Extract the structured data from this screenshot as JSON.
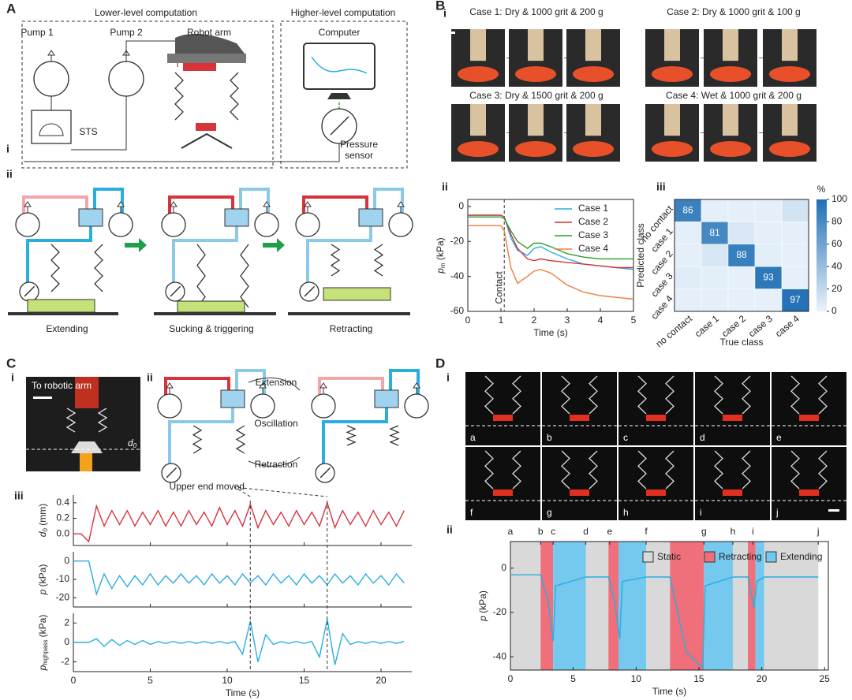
{
  "A": {
    "label": "A",
    "lower": "Lower-level computation",
    "higher": "Higher-level computation",
    "pump1": "Pump 1",
    "pump2": "Pump 2",
    "robot": "Robot arm",
    "computer": "Computer",
    "sts": "STS",
    "sensor": [
      "Pressure",
      "sensor"
    ],
    "sub_i": "i",
    "sub_ii": "ii",
    "steps": [
      "Extending",
      "Sucking & triggering",
      "Retracting"
    ]
  },
  "B": {
    "label": "B",
    "sub_i": "i",
    "cases": [
      "Case 1: Dry & 1000 grit & 200 g",
      "Case 2: Dry & 1000 grit & 100 g",
      "Case 3: Dry & 1500 grit & 200 g",
      "Case 4: Wet & 1000 grit & 200 g"
    ],
    "sub_ii": "ii",
    "sub_iii": "iii"
  },
  "C": {
    "label": "C",
    "sub_i": "i",
    "photo_caption": "To robotic arm",
    "photo_d": "d",
    "photo_d_sub": "0",
    "sub_ii": "ii",
    "cycle": [
      "Extension",
      "Oscillation",
      "Retraction"
    ],
    "sub_iii": "iii"
  },
  "D": {
    "label": "D",
    "sub_i": "i",
    "frames": [
      "a",
      "b",
      "c",
      "d",
      "e",
      "f",
      "g",
      "h",
      "i",
      "j"
    ],
    "sub_ii": "ii"
  },
  "chart_data": [
    {
      "type": "line",
      "x": [
        0,
        0.5,
        1,
        1.1,
        1.3,
        1.5,
        1.8,
        2,
        2.2,
        2.5,
        3,
        3.5,
        4,
        4.5,
        5
      ],
      "series": [
        {
          "name": "Case 1",
          "color": "#29aee0",
          "values": [
            -5,
            -5,
            -5,
            -6,
            -18,
            -25,
            -28,
            -24,
            -23,
            -26,
            -30,
            -33,
            -34,
            -35,
            -36
          ]
        },
        {
          "name": "Case 2",
          "color": "#d6333a",
          "values": [
            -5,
            -5,
            -5,
            -6,
            -16,
            -24,
            -30,
            -31,
            -30,
            -31,
            -32,
            -33,
            -34,
            -35,
            -35
          ]
        },
        {
          "name": "Case 3",
          "color": "#2ca02c",
          "values": [
            -6,
            -6,
            -6,
            -7,
            -14,
            -20,
            -24,
            -21,
            -21,
            -23,
            -27,
            -29,
            -30,
            -30,
            -30
          ]
        },
        {
          "name": "Case 4",
          "color": "#f07b3f",
          "values": [
            -11,
            -11,
            -11,
            -14,
            -35,
            -44,
            -40,
            -37,
            -36,
            -38,
            -45,
            -49,
            -51,
            -52,
            -53
          ]
        }
      ],
      "xlim": [
        0,
        5
      ],
      "xticks": [
        0,
        1,
        2,
        3,
        4,
        5
      ],
      "ylim": [
        -60,
        4
      ],
      "yticks": [
        -60,
        -40,
        -20,
        0
      ],
      "xlabel": "Time (s)",
      "ylabel": {
        "main": "p",
        "sub": "m",
        "unit": " (kPa)"
      },
      "annotations": [
        {
          "text": "Contact",
          "x": 1.1
        }
      ],
      "legend": "upper right"
    },
    {
      "type": "heatmap",
      "xcategories": [
        "no contact",
        "case 1",
        "case 2",
        "case 3",
        "case 4"
      ],
      "ycategories": [
        "no contact",
        "case 1",
        "case 2",
        "case 3",
        "case 4"
      ],
      "values": [
        [
          86,
          3,
          3,
          3,
          12
        ],
        [
          3,
          81,
          8,
          3,
          3
        ],
        [
          3,
          9,
          88,
          4,
          2
        ],
        [
          5,
          4,
          2,
          93,
          2
        ],
        [
          3,
          3,
          2,
          2,
          97
        ]
      ],
      "clim": [
        0,
        100
      ],
      "cticks": [
        0,
        20,
        40,
        60,
        80,
        100
      ],
      "clabel": "%",
      "colors": [
        "#eaf3fb",
        "#1f6fb4"
      ],
      "xlabel": "True class",
      "ylabel": "Predicted class"
    },
    {
      "type": "stacked_lines",
      "x": [
        0,
        0.5,
        1,
        1.5,
        2,
        2.5,
        3,
        3.5,
        4,
        4.5,
        5,
        5.5,
        6,
        6.5,
        7,
        7.5,
        8,
        8.5,
        9,
        9.5,
        10,
        10.5,
        11,
        11.5,
        12,
        12.5,
        13,
        13.5,
        14,
        14.5,
        15,
        15.5,
        16,
        16.5,
        17,
        17.5,
        18,
        18.5,
        19,
        19.5,
        20,
        20.5,
        21,
        21.5
      ],
      "xlim": [
        0,
        22
      ],
      "xticks": [
        0,
        5,
        10,
        15,
        20
      ],
      "xlabel": "Time (s)",
      "annotation": "Upper end moved",
      "event_lines": [
        11.5,
        16.5
      ],
      "subplots": [
        {
          "ylabel": {
            "main": "d",
            "sub": "0",
            "unit": " (mm)"
          },
          "ylim": [
            -0.15,
            0.5
          ],
          "yticks": [
            {
              "value": 0,
              "label": "0.0"
            },
            0.2,
            0.4
          ],
          "color": "#d6333a",
          "values": [
            0,
            0,
            -0.1,
            0.36,
            0.1,
            0.3,
            0.12,
            0.3,
            0.1,
            0.28,
            0.12,
            0.3,
            0.1,
            0.28,
            0.1,
            0.3,
            0.12,
            0.28,
            0.1,
            0.34,
            0.12,
            0.3,
            0.1,
            0.38,
            0.08,
            0.3,
            0.12,
            0.28,
            0.1,
            0.3,
            0.12,
            0.28,
            0.1,
            0.4,
            0.08,
            0.3,
            0.12,
            0.28,
            0.1,
            0.3,
            0.12,
            0.28,
            0.1,
            0.3
          ]
        },
        {
          "ylabel": {
            "main": "p",
            "unit": " (kPa)"
          },
          "ylim": [
            -25,
            5
          ],
          "yticks": [
            -20,
            -10,
            0
          ],
          "color": "#29aee0",
          "values": [
            0,
            0,
            0,
            -18,
            -7,
            -15,
            -8,
            -14,
            -8,
            -13,
            -7,
            -13,
            -8,
            -12,
            -7,
            -12,
            -8,
            -13,
            -7,
            -12,
            -8,
            -13,
            -7,
            -12,
            -8,
            -13,
            -7,
            -12,
            -8,
            -13,
            -7,
            -12,
            -8,
            -13,
            -7,
            -12,
            -8,
            -13,
            -7,
            -12,
            -8,
            -13,
            -7,
            -12
          ]
        },
        {
          "ylabel": {
            "main": "p",
            "sub": "highpass",
            "unit": " (kPa)"
          },
          "ylim": [
            -3,
            3
          ],
          "yticks": [
            -2,
            0,
            2
          ],
          "color": "#29aee0",
          "values": [
            0,
            0,
            0,
            0.4,
            -0.4,
            0.3,
            -0.3,
            0.2,
            -0.2,
            0.2,
            -0.2,
            0.1,
            -0.1,
            0.1,
            -0.1,
            0.1,
            -0.1,
            0.1,
            -0.1,
            0.1,
            -0.1,
            0.1,
            -1.2,
            2.2,
            -2.0,
            0.8,
            -0.2,
            0.1,
            -0.1,
            0.1,
            -0.1,
            0.1,
            -1.5,
            2.4,
            -2.3,
            0.9,
            -0.2,
            0.1,
            -0.1,
            0.1,
            -0.1,
            0.1,
            -0.1,
            0.1
          ]
        }
      ]
    },
    {
      "type": "line",
      "x": [
        0,
        2.4,
        3.0,
        3.4,
        3.6,
        6,
        7.8,
        8.3,
        8.7,
        8.9,
        10.8,
        12.7,
        14,
        15.3,
        15.5,
        17.7,
        18.9,
        19.4,
        19.6,
        20.2,
        24.5
      ],
      "series": [
        {
          "color": "#29aee0",
          "values": [
            -3,
            -3,
            -15,
            -33,
            -8,
            -4,
            -4,
            -15,
            -32,
            -6,
            -4,
            -4,
            -38,
            -45,
            -8,
            -4,
            -4,
            -18,
            -6,
            -4,
            -4
          ]
        }
      ],
      "states": [
        {
          "name": "Static",
          "color": "#d9d9d9",
          "spans": [
            [
              0,
              2.4
            ],
            [
              6,
              7.8
            ],
            [
              10.8,
              12.7
            ],
            [
              17.7,
              18.9
            ],
            [
              20.2,
              24.5
            ]
          ]
        },
        {
          "name": "Retracting",
          "color": "#ef6f7a",
          "spans": [
            [
              2.4,
              3.4
            ],
            [
              7.8,
              8.6
            ],
            [
              12.7,
              15.4
            ],
            [
              18.9,
              19.5
            ]
          ]
        },
        {
          "name": "Extending",
          "color": "#75c8ee",
          "spans": [
            [
              3.4,
              6
            ],
            [
              8.6,
              10.8
            ],
            [
              15.4,
              17.7
            ],
            [
              19.5,
              20.2
            ]
          ]
        }
      ],
      "events": [
        {
          "label": "a",
          "x": 0
        },
        {
          "label": "b",
          "x": 2.4
        },
        {
          "label": "c",
          "x": 3.4
        },
        {
          "label": "d",
          "x": 6
        },
        {
          "label": "e",
          "x": 7.9
        },
        {
          "label": "f",
          "x": 10.8
        },
        {
          "label": "g",
          "x": 15.4
        },
        {
          "label": "h",
          "x": 17.7
        },
        {
          "label": "i",
          "x": 19.3
        },
        {
          "label": "j",
          "x": 24.5
        }
      ],
      "xlim": [
        0,
        25.3
      ],
      "xticks": [
        0,
        5,
        10,
        15,
        20,
        25
      ],
      "ylim": [
        -46,
        12
      ],
      "yticks": [
        -40,
        -20,
        0
      ],
      "xlabel": "Time (s)",
      "ylabel": {
        "main": "p",
        "unit": " (kPa)"
      },
      "legend": "upper right"
    }
  ]
}
